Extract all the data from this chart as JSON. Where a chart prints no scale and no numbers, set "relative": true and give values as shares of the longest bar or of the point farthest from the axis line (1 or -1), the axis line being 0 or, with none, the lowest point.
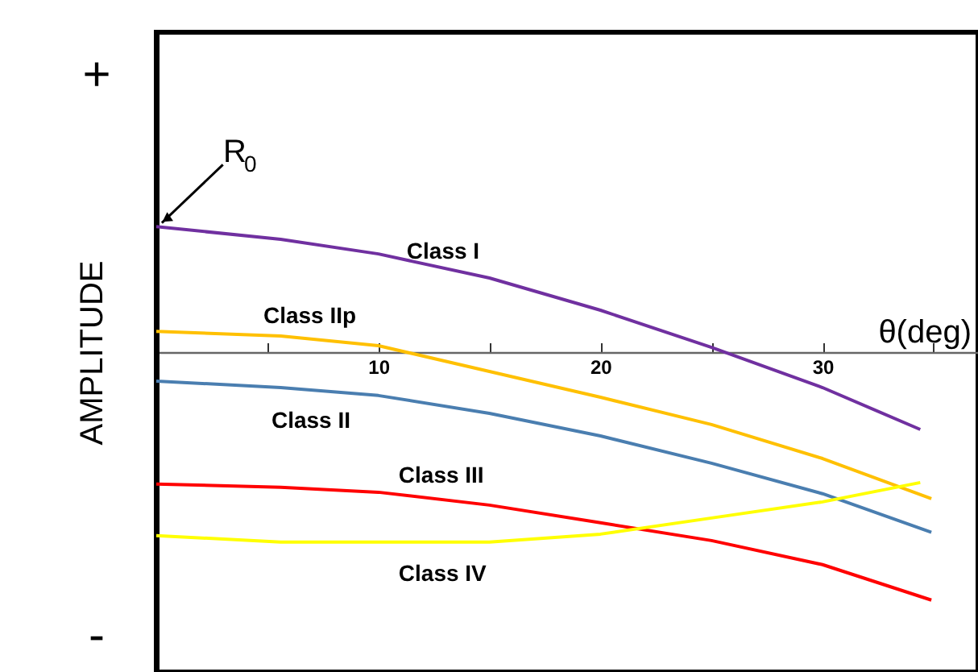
{
  "chart_data": {
    "type": "line",
    "relative": true,
    "xlabel": "θ(deg)",
    "ylabel": "AMPLITUDE",
    "xlim": [
      0,
      37
    ],
    "xticks": [
      {
        "value": 5,
        "label": null
      },
      10,
      {
        "value": 15,
        "label": null
      },
      20,
      {
        "value": 25,
        "label": null
      },
      30,
      {
        "value": 35,
        "label": null
      }
    ],
    "series": [
      {
        "name": "Class I",
        "color": "#7030a0",
        "x": [
          0,
          5.6,
          10,
          15,
          20,
          25,
          30,
          34.4
        ],
        "values": [
          0.506,
          0.455,
          0.396,
          0.299,
          0.169,
          0.019,
          -0.143,
          -0.312
        ]
      },
      {
        "name": "Class IIp",
        "color": "#ffc000",
        "x": [
          0,
          5.6,
          10,
          15,
          20,
          25,
          30,
          34.9
        ],
        "values": [
          0.084,
          0.065,
          0.026,
          -0.078,
          -0.182,
          -0.292,
          -0.429,
          -0.591
        ]
      },
      {
        "name": "Class II",
        "color": "#4a7eb0",
        "x": [
          0,
          5.6,
          10,
          15,
          20,
          25,
          30,
          34.9
        ],
        "values": [
          -0.117,
          -0.143,
          -0.175,
          -0.247,
          -0.338,
          -0.448,
          -0.571,
          -0.727
        ]
      },
      {
        "name": "Class III",
        "color": "#ff0000",
        "x": [
          0,
          5.6,
          10,
          15,
          20,
          25,
          30,
          34.9
        ],
        "values": [
          -0.532,
          -0.545,
          -0.565,
          -0.617,
          -0.688,
          -0.76,
          -0.857,
          -1
        ]
      },
      {
        "name": "Class IV",
        "color": "#ffff00",
        "x": [
          0,
          5.6,
          10,
          15,
          20,
          25,
          30,
          34.4
        ],
        "values": [
          -0.74,
          -0.766,
          -0.766,
          -0.766,
          -0.734,
          -0.669,
          -0.604,
          -0.526
        ]
      }
    ],
    "annotations": [
      "+",
      "-",
      {
        "text": "R$_{0}$",
        "x": 0,
        "y": 0.506
      }
    ],
    "legend": false,
    "grid": false,
    "marker": "none",
    "line_style": "solid"
  }
}
